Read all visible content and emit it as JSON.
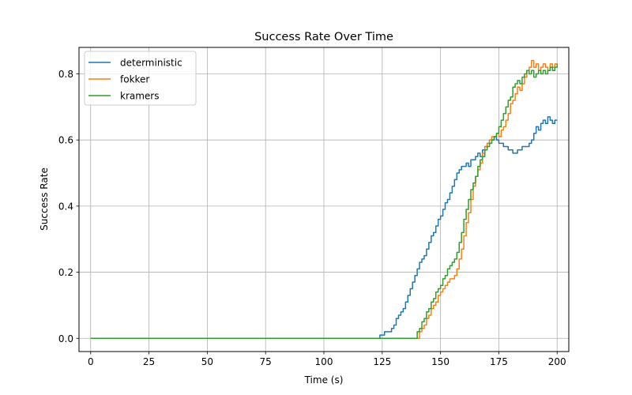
{
  "chart_data": {
    "type": "line",
    "title": "Success Rate Over Time",
    "xlabel": "Time (s)",
    "ylabel": "Success Rate",
    "xlim": [
      -5,
      205
    ],
    "ylim": [
      -0.04,
      0.88
    ],
    "xticks": [
      0,
      25,
      50,
      75,
      100,
      125,
      150,
      175,
      200
    ],
    "yticks": [
      0.0,
      0.2,
      0.4,
      0.6,
      0.8
    ],
    "xtick_labels": [
      "0",
      "25",
      "50",
      "75",
      "100",
      "125",
      "150",
      "175",
      "200"
    ],
    "ytick_labels": [
      "0.0",
      "0.2",
      "0.4",
      "0.6",
      "0.8"
    ],
    "grid": true,
    "legend_position": "top-left",
    "series": [
      {
        "name": "deterministic",
        "color": "#1f77b4",
        "step": true,
        "x": [
          0,
          123,
          124,
          126,
          128,
          129,
          130,
          131,
          132,
          133,
          134,
          135,
          136,
          137,
          138,
          139,
          140,
          141,
          142,
          143,
          144,
          145,
          146,
          147,
          148,
          149,
          150,
          151,
          152,
          153,
          154,
          155,
          156,
          157,
          158,
          159,
          160,
          161,
          162,
          163,
          164,
          165,
          166,
          167,
          168,
          169,
          170,
          171,
          172,
          173,
          174,
          175,
          176,
          177,
          178,
          179,
          180,
          181,
          182,
          183,
          184,
          185,
          186,
          187,
          188,
          189,
          190,
          191,
          192,
          193,
          194,
          195,
          196,
          197,
          198,
          199,
          200
        ],
        "y": [
          0.0,
          0.0,
          0.01,
          0.02,
          0.02,
          0.03,
          0.04,
          0.06,
          0.07,
          0.08,
          0.09,
          0.11,
          0.13,
          0.15,
          0.17,
          0.19,
          0.21,
          0.23,
          0.24,
          0.25,
          0.27,
          0.29,
          0.31,
          0.32,
          0.34,
          0.36,
          0.37,
          0.39,
          0.41,
          0.42,
          0.44,
          0.46,
          0.48,
          0.5,
          0.51,
          0.52,
          0.52,
          0.53,
          0.52,
          0.54,
          0.54,
          0.55,
          0.56,
          0.55,
          0.57,
          0.58,
          0.59,
          0.6,
          0.6,
          0.61,
          0.6,
          0.59,
          0.59,
          0.58,
          0.58,
          0.57,
          0.57,
          0.56,
          0.56,
          0.57,
          0.57,
          0.58,
          0.58,
          0.58,
          0.59,
          0.6,
          0.62,
          0.64,
          0.63,
          0.65,
          0.66,
          0.65,
          0.67,
          0.66,
          0.65,
          0.66,
          0.66
        ]
      },
      {
        "name": "fokker",
        "color": "#ff7f0e",
        "step": true,
        "x": [
          0,
          139,
          141,
          142,
          143,
          144,
          145,
          146,
          147,
          148,
          149,
          150,
          151,
          152,
          153,
          154,
          155,
          156,
          157,
          158,
          159,
          160,
          161,
          162,
          163,
          164,
          165,
          166,
          167,
          168,
          169,
          170,
          171,
          172,
          173,
          174,
          175,
          176,
          177,
          178,
          179,
          180,
          181,
          182,
          183,
          184,
          185,
          186,
          187,
          188,
          189,
          190,
          191,
          192,
          193,
          194,
          195,
          196,
          197,
          198,
          199,
          200
        ],
        "y": [
          0.0,
          0.0,
          0.02,
          0.03,
          0.04,
          0.06,
          0.07,
          0.09,
          0.1,
          0.11,
          0.13,
          0.14,
          0.15,
          0.16,
          0.17,
          0.18,
          0.18,
          0.19,
          0.21,
          0.24,
          0.27,
          0.31,
          0.35,
          0.38,
          0.42,
          0.46,
          0.49,
          0.51,
          0.53,
          0.56,
          0.58,
          0.59,
          0.6,
          0.61,
          0.61,
          0.62,
          0.61,
          0.63,
          0.64,
          0.66,
          0.68,
          0.71,
          0.72,
          0.74,
          0.76,
          0.75,
          0.77,
          0.79,
          0.81,
          0.82,
          0.84,
          0.82,
          0.83,
          0.81,
          0.82,
          0.83,
          0.82,
          0.81,
          0.83,
          0.82,
          0.83,
          0.82
        ]
      },
      {
        "name": "kramers",
        "color": "#2ca02c",
        "step": true,
        "x": [
          0,
          139,
          140,
          141,
          142,
          143,
          144,
          145,
          146,
          147,
          148,
          149,
          150,
          151,
          152,
          153,
          154,
          155,
          156,
          157,
          158,
          159,
          160,
          161,
          162,
          163,
          164,
          165,
          166,
          167,
          168,
          169,
          170,
          171,
          172,
          173,
          174,
          175,
          176,
          177,
          178,
          179,
          180,
          181,
          182,
          183,
          184,
          185,
          186,
          187,
          188,
          189,
          190,
          191,
          192,
          193,
          194,
          195,
          196,
          197,
          198,
          199,
          200
        ],
        "y": [
          0.0,
          0.0,
          0.02,
          0.03,
          0.05,
          0.06,
          0.08,
          0.09,
          0.11,
          0.12,
          0.14,
          0.15,
          0.16,
          0.18,
          0.19,
          0.21,
          0.22,
          0.23,
          0.24,
          0.26,
          0.29,
          0.32,
          0.36,
          0.39,
          0.42,
          0.45,
          0.47,
          0.49,
          0.52,
          0.54,
          0.55,
          0.57,
          0.58,
          0.59,
          0.6,
          0.61,
          0.62,
          0.64,
          0.66,
          0.68,
          0.7,
          0.72,
          0.73,
          0.76,
          0.77,
          0.78,
          0.77,
          0.79,
          0.8,
          0.81,
          0.8,
          0.81,
          0.79,
          0.8,
          0.81,
          0.8,
          0.81,
          0.8,
          0.81,
          0.82,
          0.81,
          0.82,
          0.83
        ]
      }
    ]
  }
}
